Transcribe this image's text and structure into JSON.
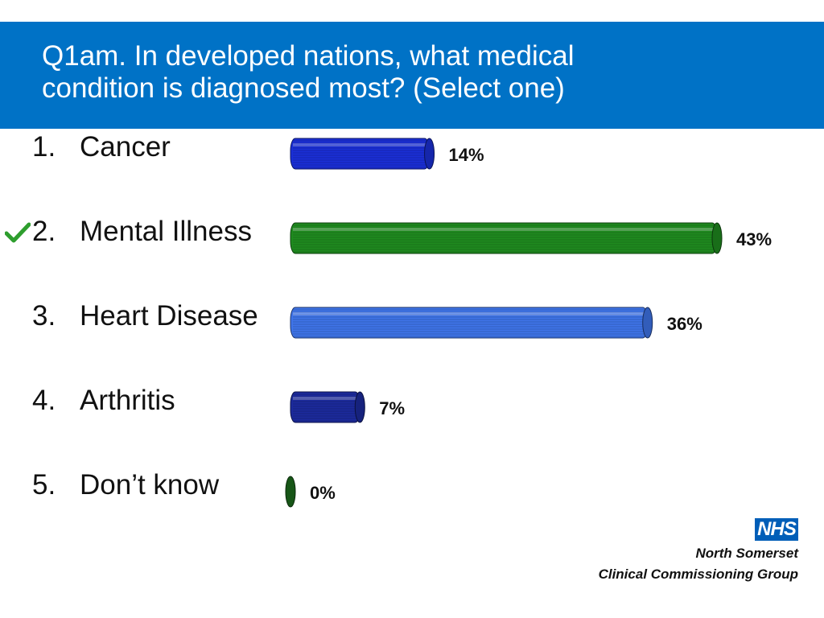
{
  "header": {
    "title_line1": "Q1am. In developed nations, what medical",
    "title_line2": "condition is diagnosed most? (Select one)"
  },
  "options": [
    {
      "number": "1.",
      "label": "Cancer"
    },
    {
      "number": "2.",
      "label": "Mental Illness",
      "correct": true
    },
    {
      "number": "3.",
      "label": "Heart Disease"
    },
    {
      "number": "4.",
      "label": "Arthritis"
    },
    {
      "number": "5.",
      "label": "Don’t know"
    }
  ],
  "correct_mark_icon": "check-icon",
  "chart_data": {
    "type": "bar",
    "orientation": "horizontal",
    "categories": [
      "Cancer",
      "Mental Illness",
      "Heart Disease",
      "Arthritis",
      "Don’t know"
    ],
    "values": [
      14,
      43,
      36,
      7,
      0
    ],
    "value_labels": [
      "14%",
      "43%",
      "36%",
      "7%",
      "0%"
    ],
    "colors": [
      "#1a2fd6",
      "#1f8a1f",
      "#3f74e8",
      "#1c2a9c",
      "#1d6b1d"
    ],
    "xlim": [
      0,
      43
    ],
    "grid": false,
    "legend": "none",
    "xlabel": "",
    "ylabel": ""
  },
  "logo": {
    "mark": "NHS",
    "org_line1": "North Somerset",
    "org_line2": "Clinical Commissioning Group"
  },
  "colors": {
    "header_bg": "#0072c6",
    "header_text": "#ffffff",
    "check": "#2e9e2e",
    "nhs_blue": "#005eb8"
  }
}
